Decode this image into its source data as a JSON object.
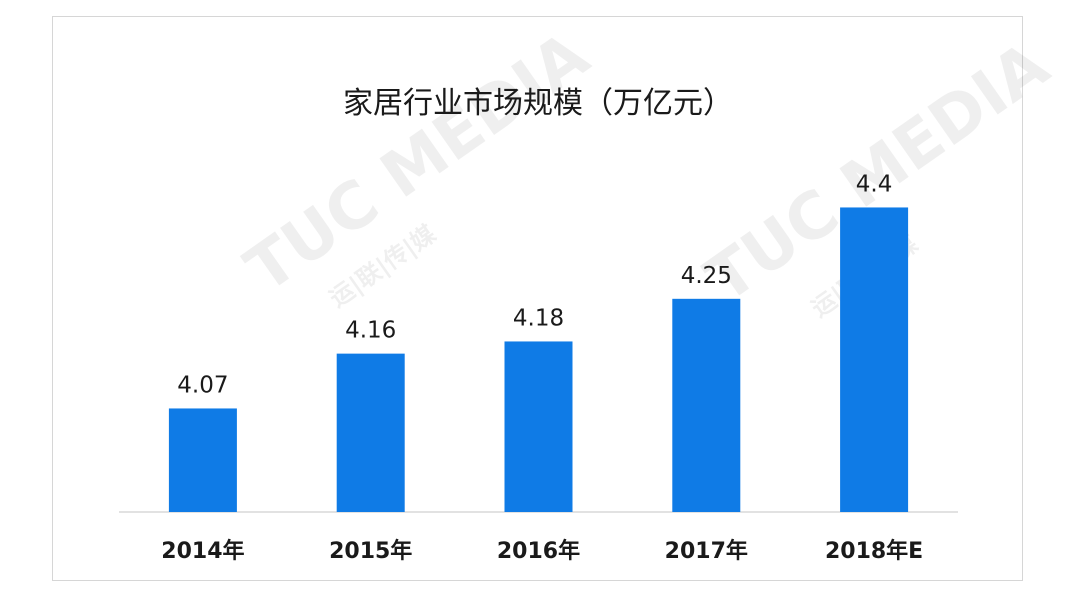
{
  "watermark": {
    "brand": "TUC MEDIA",
    "subtitle": "运|联|传|媒"
  },
  "chart_data": {
    "type": "bar",
    "title": "家居行业市场规模（万亿元）",
    "categories": [
      "2014年",
      "2015年",
      "2016年",
      "2017年",
      "2018年E"
    ],
    "values": [
      4.07,
      4.16,
      4.18,
      4.25,
      4.4
    ],
    "value_labels": [
      "4.07",
      "4.16",
      "4.18",
      "4.25",
      "4.4"
    ],
    "xlabel": "",
    "ylabel": "",
    "ylim": [
      3.9,
      4.45
    ],
    "grid": false,
    "legend": "none",
    "bar_color": "#0f7be6",
    "axis_color": "#d9d9d9",
    "text_color": "#1a1a1a"
  }
}
